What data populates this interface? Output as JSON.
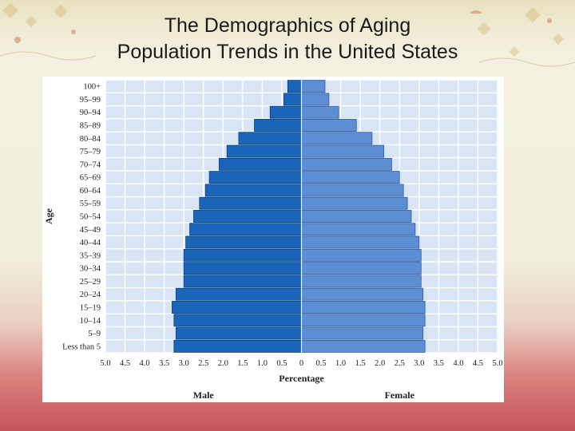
{
  "slide": {
    "title_line1": "The Demographics of Aging",
    "title_line2": "Population Trends in the United States"
  },
  "colors": {
    "male": "#1a65b8",
    "female": "#5d8ed4",
    "plot_bg": "#d9e4f5",
    "grid": "#ffffff"
  },
  "chart_data": {
    "type": "bar",
    "orientation": "horizontal",
    "layout": "population-pyramid",
    "categories": [
      "100+",
      "95–99",
      "90–94",
      "85–89",
      "80–84",
      "75–79",
      "70–74",
      "65–69",
      "60–64",
      "55–59",
      "50–54",
      "45–49",
      "40–44",
      "35–39",
      "30–34",
      "25–29",
      "20–24",
      "15–19",
      "10–14",
      "5–9",
      "Less than 5"
    ],
    "series": [
      {
        "name": "Male",
        "values": [
          0.35,
          0.45,
          0.8,
          1.2,
          1.6,
          1.9,
          2.1,
          2.35,
          2.45,
          2.6,
          2.75,
          2.85,
          2.95,
          3.0,
          3.0,
          3.0,
          3.2,
          3.3,
          3.25,
          3.2,
          3.25
        ]
      },
      {
        "name": "Female",
        "values": [
          0.6,
          0.7,
          0.95,
          1.4,
          1.8,
          2.1,
          2.3,
          2.5,
          2.6,
          2.7,
          2.8,
          2.9,
          3.0,
          3.05,
          3.05,
          3.05,
          3.1,
          3.15,
          3.15,
          3.1,
          3.15
        ]
      }
    ],
    "xlim": [
      -5.0,
      5.0
    ],
    "x_ticks": [
      "5.0",
      "4.5",
      "4.0",
      "3.5",
      "3.0",
      "2.5",
      "2.0",
      "1.5",
      "1.0",
      "0.5",
      "0",
      "0.5",
      "1.0",
      "1.5",
      "2.0",
      "2.5",
      "3.0",
      "3.5",
      "4.0",
      "4.5",
      "5.0"
    ],
    "xlabel": "Percentage",
    "ylabel": "Age",
    "left_label": "Male",
    "right_label": "Female",
    "grid": true
  }
}
